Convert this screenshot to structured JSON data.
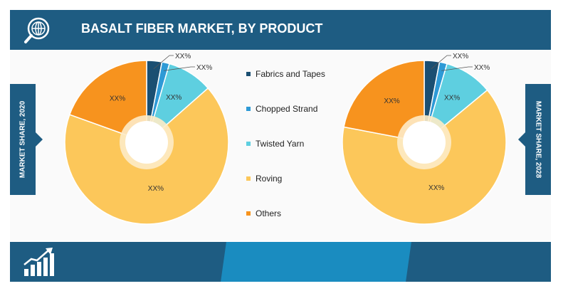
{
  "header": {
    "title": "BASALT FIBER MARKET, BY PRODUCT"
  },
  "side_labels": {
    "left": "MARKET SHARE, 2020",
    "right": "MARKET SHARE, 2028"
  },
  "colors": {
    "Fabrics and Tapes": "#1b4f72",
    "Chopped Strand": "#2e9ad6",
    "Twisted Yarn": "#5ecfe0",
    "Roving": "#fcc75a",
    "Others": "#f7931e",
    "header_bg": "#1e5c82",
    "footer_accent": "#1a8cc0"
  },
  "chart_data": [
    {
      "type": "pie",
      "title": "",
      "year_label": "MARKET SHARE, 2020",
      "categories": [
        "Fabrics and Tapes",
        "Chopped Strand",
        "Twisted Yarn",
        "Roving",
        "Others"
      ],
      "values": [
        3,
        1.5,
        9,
        67,
        19.5
      ],
      "data_labels": [
        "XX%",
        "XX%",
        "XX%",
        "XX%",
        "XX%"
      ],
      "donut_hole": true
    },
    {
      "type": "pie",
      "title": "",
      "year_label": "MARKET SHARE, 2028",
      "categories": [
        "Fabrics and Tapes",
        "Chopped Strand",
        "Twisted Yarn",
        "Roving",
        "Others"
      ],
      "values": [
        3,
        1.5,
        9.5,
        64,
        22
      ],
      "data_labels": [
        "XX%",
        "XX%",
        "XX%",
        "XX%",
        "XX%"
      ],
      "donut_hole": true
    }
  ],
  "legend": {
    "items": [
      "Fabrics and Tapes",
      "Chopped Strand",
      "Twisted Yarn",
      "Roving",
      "Others"
    ]
  }
}
